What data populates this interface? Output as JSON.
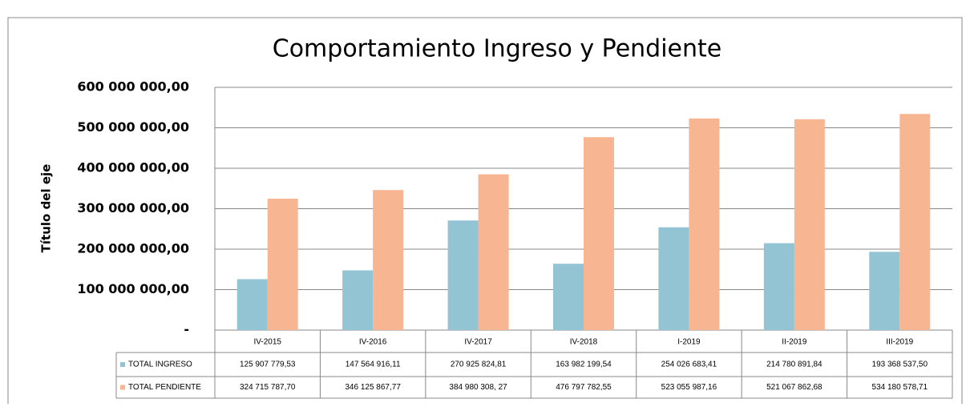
{
  "chart_data": {
    "type": "bar",
    "title": "Comportamiento Ingreso y Pendiente",
    "y_label": "Título del eje",
    "categories": [
      "IV-2015",
      "IV-2016",
      "IV-2017",
      "IV-2018",
      "I-2019",
      "II-2019",
      "III-2019"
    ],
    "series": [
      {
        "name": "TOTAL INGRESO",
        "color": "#93c4d4",
        "values": [
          125907779.53,
          147564916.11,
          270925824.81,
          163982199.54,
          254026683.41,
          214780891.84,
          193368537.5
        ],
        "value_labels": [
          "125 907 779,53",
          "147 564 916,11",
          "270 925 824,81",
          "163 982 199,54",
          "254 026 683,41",
          "214 780 891,84",
          "193 368 537,50"
        ]
      },
      {
        "name": "TOTAL PENDIENTE",
        "color": "#f8b592",
        "values": [
          324715787.7,
          346125867.77,
          384980308.27,
          476797782.55,
          523055987.16,
          521067862.68,
          534180578.71
        ],
        "value_labels": [
          "324 715 787,70",
          "346 125 867,77",
          "384 980 308, 27",
          "476 797 782,55",
          "523 055 987,16",
          "521 067 862,68",
          "534 180 578,71"
        ]
      }
    ],
    "ylim": [
      0,
      600000000
    ],
    "yticks": [
      {
        "value": 0,
        "label": "-"
      },
      {
        "value": 100000000,
        "label": "100 000 000,00"
      },
      {
        "value": 200000000,
        "label": "200 000 000,00"
      },
      {
        "value": 300000000,
        "label": "300 000 000,00"
      },
      {
        "value": 400000000,
        "label": "400 000 000,00"
      },
      {
        "value": 500000000,
        "label": "500 000 000,00"
      },
      {
        "value": 600000000,
        "label": "600 000 000,00"
      }
    ],
    "grid": true
  }
}
